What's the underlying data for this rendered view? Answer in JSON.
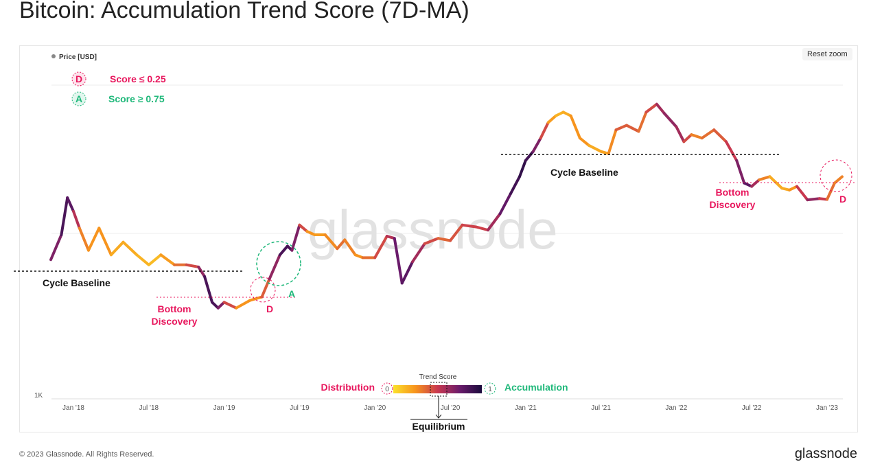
{
  "title": "Bitcoin: Accumulation Trend Score (7D-MA)",
  "reset_zoom": "Reset zoom",
  "footer": {
    "copyright": "© 2023 Glassnode. All Rights Reserved.",
    "brand": "glassnode"
  },
  "watermark": "glassnode",
  "legend": {
    "series": "Price [USD]",
    "d_badge": "D",
    "d_label": "Score ≤ 0.25",
    "a_badge": "A",
    "a_label": "Score ≥ 0.75"
  },
  "colorbar": {
    "title": "Trend Score",
    "left_label": "Distribution",
    "right_label": "Accumulation",
    "min": "0",
    "max": "1",
    "equilibrium": "Equilibrium"
  },
  "annotations": {
    "cycle_baseline_1": "Cycle Baseline",
    "cycle_baseline_2": "Cycle Baseline",
    "bottom_1": "Bottom",
    "discovery_1": "Discovery",
    "bottom_2": "Bottom",
    "discovery_2": "Discovery",
    "d1": "D",
    "a1": "A",
    "d2": "D"
  },
  "colors": {
    "distribution": "#e8175d",
    "accumulation": "#1fb87a"
  },
  "chart_data": {
    "type": "line",
    "title": "Bitcoin: Accumulation Trend Score (7D-MA)",
    "ylabel": "Price [USD]",
    "yscale": "log",
    "y_tick_labels": [
      "1K"
    ],
    "x_tick_labels": [
      "Jan '18",
      "Jul '18",
      "Jan '19",
      "Jul '19",
      "Jan '20",
      "Jul '20",
      "Jan '21",
      "Jul '21",
      "Jan '22",
      "Jul '22",
      "Jan '23"
    ],
    "series": [
      {
        "name": "Price [USD]",
        "color_by": "Trend Score (0-1)",
        "t": [
          2017.85,
          2017.92,
          2017.96,
          2018.0,
          2018.04,
          2018.1,
          2018.17,
          2018.25,
          2018.33,
          2018.42,
          2018.5,
          2018.58,
          2018.67,
          2018.75,
          2018.83,
          2018.87,
          2018.92,
          2018.96,
          2019.0,
          2019.08,
          2019.17,
          2019.25,
          2019.3,
          2019.37,
          2019.42,
          2019.45,
          2019.5,
          2019.55,
          2019.6,
          2019.67,
          2019.75,
          2019.8,
          2019.87,
          2019.92,
          2020.0,
          2020.08,
          2020.13,
          2020.18,
          2020.25,
          2020.33,
          2020.42,
          2020.5,
          2020.58,
          2020.67,
          2020.75,
          2020.83,
          2020.9,
          2020.96,
          2021.0,
          2021.05,
          2021.1,
          2021.15,
          2021.2,
          2021.25,
          2021.3,
          2021.36,
          2021.42,
          2021.5,
          2021.55,
          2021.6,
          2021.67,
          2021.75,
          2021.8,
          2021.87,
          2021.92,
          2022.0,
          2022.05,
          2022.1,
          2022.17,
          2022.25,
          2022.33,
          2022.4,
          2022.45,
          2022.5,
          2022.55,
          2022.62,
          2022.7,
          2022.75,
          2022.8,
          2022.87,
          2022.95,
          2023.0,
          2023.05,
          2023.1
        ],
        "price_k": [
          7,
          10,
          17,
          14,
          11,
          8,
          11,
          7.5,
          9,
          7.5,
          6.5,
          7.5,
          6.5,
          6.5,
          6.3,
          5.5,
          3.8,
          3.5,
          3.8,
          3.5,
          3.9,
          4.1,
          5.3,
          7.5,
          8.5,
          8,
          11.5,
          10.5,
          10,
          10,
          8.2,
          9.3,
          7.5,
          7.2,
          7.2,
          9.8,
          9.5,
          5,
          6.8,
          8.8,
          9.5,
          9.2,
          11.5,
          11.2,
          10.7,
          13.5,
          18,
          23,
          29,
          33,
          40,
          50,
          55,
          58,
          55,
          40,
          36,
          33,
          32,
          45,
          48,
          44,
          58,
          65,
          57,
          47,
          38,
          42,
          40,
          45,
          38,
          29,
          21,
          20,
          22,
          23,
          19.5,
          19,
          20,
          16.5,
          16.8,
          16.6,
          21,
          23
        ],
        "score": [
          0.6,
          0.8,
          0.9,
          0.7,
          0.4,
          0.2,
          0.3,
          0.2,
          0.15,
          0.2,
          0.1,
          0.15,
          0.3,
          0.4,
          0.5,
          0.8,
          0.9,
          0.8,
          0.6,
          0.3,
          0.2,
          0.3,
          0.5,
          0.8,
          0.9,
          0.8,
          0.6,
          0.3,
          0.2,
          0.25,
          0.3,
          0.4,
          0.2,
          0.3,
          0.4,
          0.5,
          0.6,
          0.9,
          0.7,
          0.5,
          0.4,
          0.35,
          0.5,
          0.45,
          0.5,
          0.7,
          0.85,
          0.9,
          0.95,
          0.8,
          0.6,
          0.3,
          0.15,
          0.15,
          0.2,
          0.3,
          0.2,
          0.15,
          0.25,
          0.3,
          0.5,
          0.3,
          0.4,
          0.5,
          0.7,
          0.6,
          0.6,
          0.3,
          0.3,
          0.4,
          0.4,
          0.6,
          0.8,
          0.8,
          0.4,
          0.2,
          0.15,
          0.2,
          0.3,
          0.7,
          0.6,
          0.4,
          0.3,
          0.3
        ]
      }
    ]
  }
}
